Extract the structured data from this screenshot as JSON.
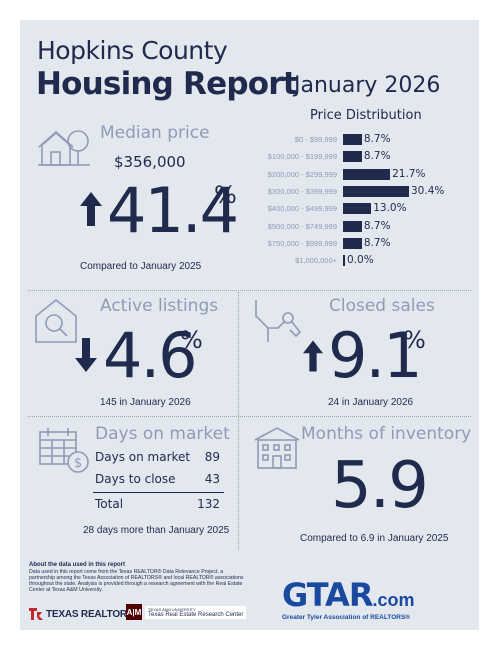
{
  "header": {
    "county": "Hopkins County",
    "report": "Housing Report",
    "month": "January 2026"
  },
  "price_distribution": {
    "title": "Price Distribution",
    "chart_data": {
      "type": "bar",
      "orientation": "horizontal",
      "title": "Price Distribution",
      "categories": [
        "$0 - $99,999",
        "$100,000 - $199,999",
        "$200,000 - $299,999",
        "$300,000 - $399,999",
        "$400,000 - $499,999",
        "$500,000 - $749,999",
        "$750,000 - $999,999",
        "$1,000,000+"
      ],
      "values": [
        8.7,
        8.7,
        21.7,
        30.4,
        13.0,
        8.7,
        8.7,
        0.0
      ],
      "value_labels": [
        "8.7%",
        "8.7%",
        "21.7%",
        "30.4%",
        "13.0%",
        "8.7%",
        "8.7%",
        "0.0%"
      ]
    }
  },
  "median_price": {
    "title": "Median price",
    "value": "$356,000",
    "change": "41.4",
    "pct": "%",
    "direction": "up",
    "compare": "Compared to January 2025"
  },
  "active_listings": {
    "title": "Active listings",
    "change": "4.6",
    "pct": "%",
    "direction": "down",
    "compare": "145 in January 2026"
  },
  "closed_sales": {
    "title": "Closed sales",
    "change": "9.1",
    "pct": "%",
    "direction": "up",
    "compare": "24 in January 2026"
  },
  "days_on_market": {
    "title": "Days on market",
    "rows": [
      {
        "label": "Days on market",
        "value": "89"
      },
      {
        "label": "Days to close",
        "value": "43"
      }
    ],
    "total_label": "Total",
    "total_value": "132",
    "compare": "28 days more than January 2025"
  },
  "months_inventory": {
    "title": "Months of inventory",
    "value": "5.9",
    "compare": "Compared to 6.9 in January 2025"
  },
  "footer": {
    "about_title": "About the data used in this report",
    "about_text": "Data used in this report come from the Texas REALTOR® Data Relevance Project, a partnership among the Texas Association of REALTORS® and local REALTOR® associations throughout the state. Analysis is provided through a research agreement with the Real Estate Center at Texas A&M University.",
    "texas_realtors": "TEXAS REALTORS",
    "tamu_small": "TEXAS A&M UNIVERSITY",
    "tamu_center": "Texas Real Estate Research Center",
    "gtar_logo": "GTAR",
    "gtar_com": ".com",
    "gtar_full": "Greater Tyler Association of REALTORS®"
  },
  "colors": {
    "navy": "#1f2a4d",
    "grey": "#8e9cb6",
    "card": "#e3e7ee",
    "red": "#c1272d",
    "maroon": "#500000"
  }
}
